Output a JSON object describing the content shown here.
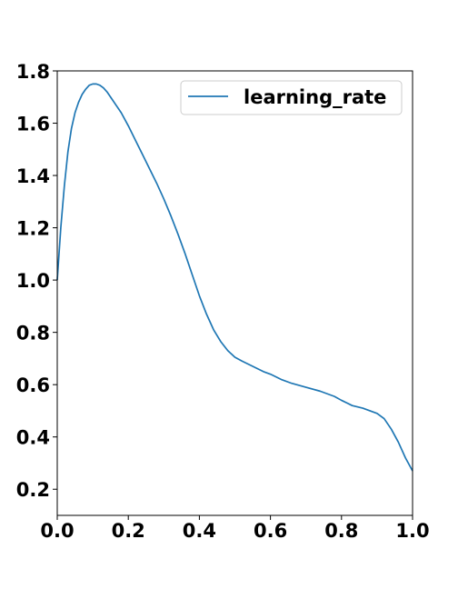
{
  "chart_data": {
    "type": "line",
    "title": "",
    "xlabel": "",
    "ylabel": "",
    "xlim": [
      0.0,
      1.0
    ],
    "ylim": [
      0.1,
      1.8
    ],
    "xticks": [
      "0.0",
      "0.2",
      "0.4",
      "0.6",
      "0.8",
      "1.0"
    ],
    "yticks": [
      "0.2",
      "0.4",
      "0.6",
      "0.8",
      "1.0",
      "1.2",
      "1.4",
      "1.6",
      "1.8"
    ],
    "grid": false,
    "legend_position": "top-right",
    "series": [
      {
        "name": "learning_rate",
        "color": "#1f77b4",
        "x": [
          0.0,
          0.01,
          0.02,
          0.03,
          0.04,
          0.05,
          0.06,
          0.07,
          0.08,
          0.09,
          0.1,
          0.11,
          0.12,
          0.13,
          0.14,
          0.15,
          0.16,
          0.18,
          0.2,
          0.22,
          0.24,
          0.26,
          0.28,
          0.3,
          0.32,
          0.34,
          0.36,
          0.38,
          0.4,
          0.42,
          0.44,
          0.46,
          0.48,
          0.5,
          0.52,
          0.55,
          0.58,
          0.6,
          0.63,
          0.66,
          0.7,
          0.74,
          0.78,
          0.8,
          0.83,
          0.86,
          0.88,
          0.9,
          0.92,
          0.94,
          0.96,
          0.98,
          1.0
        ],
        "y": [
          1.0,
          1.2,
          1.36,
          1.49,
          1.58,
          1.64,
          1.68,
          1.71,
          1.73,
          1.745,
          1.75,
          1.75,
          1.745,
          1.735,
          1.72,
          1.7,
          1.68,
          1.64,
          1.59,
          1.535,
          1.48,
          1.425,
          1.37,
          1.31,
          1.245,
          1.175,
          1.1,
          1.02,
          0.94,
          0.87,
          0.81,
          0.765,
          0.73,
          0.705,
          0.69,
          0.67,
          0.65,
          0.64,
          0.62,
          0.605,
          0.59,
          0.575,
          0.555,
          0.54,
          0.52,
          0.51,
          0.5,
          0.49,
          0.47,
          0.43,
          0.38,
          0.32,
          0.27
        ]
      }
    ]
  }
}
